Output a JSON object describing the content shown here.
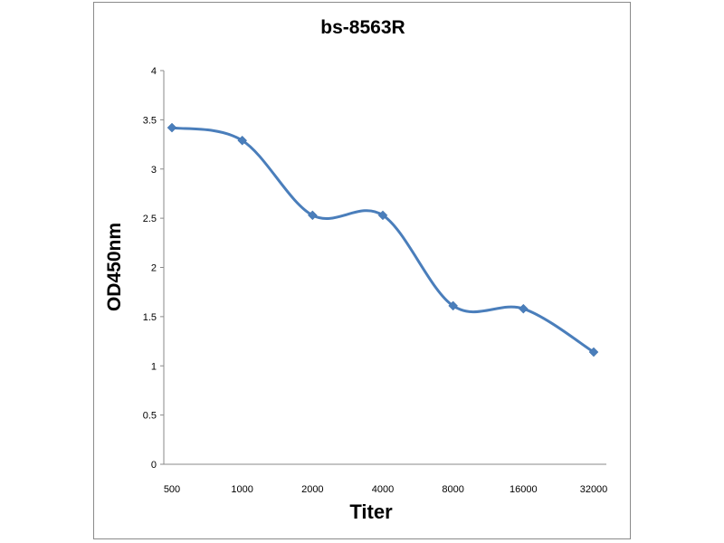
{
  "chart_data": {
    "type": "line",
    "title": "bs-8563R",
    "xlabel": "Titer",
    "ylabel": "OD450nm",
    "categories": [
      "500",
      "1000",
      "2000",
      "4000",
      "8000",
      "16000",
      "32000"
    ],
    "yticks": [
      "0",
      "0.5",
      "1",
      "1.5",
      "2",
      "2.5",
      "3",
      "3.5",
      "4"
    ],
    "ylim": [
      0,
      4
    ],
    "series": [
      {
        "values": [
          3.42,
          3.29,
          2.53,
          2.53,
          1.61,
          1.58,
          1.14
        ]
      }
    ],
    "grid": false,
    "legend": "none",
    "line_color": "#4a7ebb",
    "marker": "diamond"
  }
}
